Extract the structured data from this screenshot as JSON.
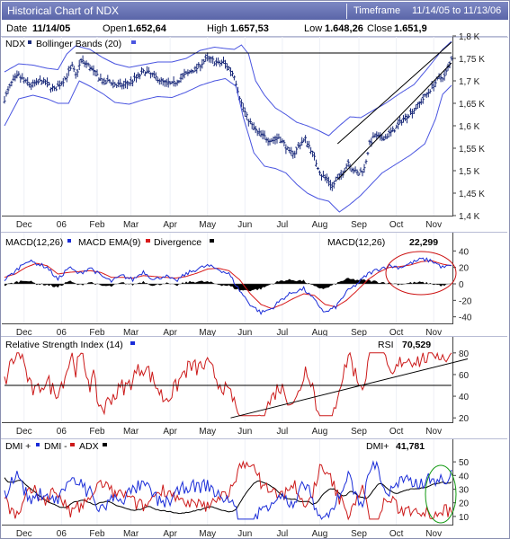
{
  "header": {
    "title": "Historical Chart of NDX",
    "timeframe_label": "Timeframe",
    "timeframe_range": "11/14/05 to 11/13/06"
  },
  "quote": {
    "date_label": "Date",
    "date": "11/14/05",
    "open_label": "Open",
    "open": "1.652,64",
    "high_label": "High",
    "high": "1.657,53",
    "low_label": "Low",
    "low": "1.648,26",
    "close_label": "Close",
    "close": "1.651,9"
  },
  "colors": {
    "price_bars": "#1a2a7a",
    "bands": "#4a55e0",
    "macd": "#1a2cd8",
    "macd_ema": "#d81a1a",
    "divergence": "#000000",
    "rsi": "#cc1a1a",
    "dmi_plus": "#1a2cd8",
    "dmi_minus": "#cc1a1a",
    "adx": "#000000",
    "highlight_red": "#cc1111",
    "highlight_green": "#119911"
  },
  "months": [
    "Dec",
    "06",
    "Feb",
    "Mar",
    "Apr",
    "May",
    "Jun",
    "Jul",
    "Aug",
    "Sep",
    "Oct",
    "Nov"
  ],
  "chart_data": [
    {
      "type": "ohlc",
      "legend": [
        {
          "symbol": "NDX"
        },
        {
          "name": "Bollinger Bands (20)"
        }
      ],
      "yticks": [
        "1,4 K",
        "1,45 K",
        "1,5 K",
        "1,55 K",
        "1,6 K",
        "1,65 K",
        "1,7 K",
        "1,75 K",
        "1,8 K"
      ],
      "ylim": [
        1400,
        1800
      ],
      "close_path": [
        [
          0,
          1660
        ],
        [
          4,
          1695
        ],
        [
          8,
          1712
        ],
        [
          11,
          1700
        ],
        [
          15,
          1690
        ],
        [
          18,
          1695
        ],
        [
          21,
          1700
        ],
        [
          25,
          1690
        ],
        [
          28,
          1680
        ],
        [
          30,
          1688
        ],
        [
          34,
          1705
        ],
        [
          38,
          1732
        ],
        [
          40,
          1712
        ],
        [
          43,
          1745
        ],
        [
          47,
          1735
        ],
        [
          50,
          1720
        ],
        [
          53,
          1708
        ],
        [
          56,
          1695
        ],
        [
          59,
          1700
        ],
        [
          63,
          1690
        ],
        [
          67,
          1690
        ],
        [
          71,
          1698
        ],
        [
          75,
          1710
        ],
        [
          79,
          1722
        ],
        [
          83,
          1712
        ],
        [
          86,
          1705
        ],
        [
          90,
          1695
        ],
        [
          94,
          1692
        ],
        [
          97,
          1700
        ],
        [
          101,
          1712
        ],
        [
          104,
          1720
        ],
        [
          108,
          1728
        ],
        [
          111,
          1740
        ],
        [
          114,
          1750
        ],
        [
          117,
          1745
        ],
        [
          120,
          1738
        ],
        [
          123,
          1742
        ],
        [
          126,
          1728
        ],
        [
          129,
          1712
        ],
        [
          131,
          1680
        ],
        [
          133,
          1650
        ],
        [
          136,
          1620
        ],
        [
          139,
          1600
        ],
        [
          142,
          1585
        ],
        [
          145,
          1578
        ],
        [
          148,
          1570
        ],
        [
          151,
          1568
        ],
        [
          154,
          1575
        ],
        [
          157,
          1560
        ],
        [
          160,
          1540
        ],
        [
          163,
          1540
        ],
        [
          166,
          1560
        ],
        [
          169,
          1570
        ],
        [
          172,
          1548
        ],
        [
          175,
          1518
        ],
        [
          178,
          1490
        ],
        [
          181,
          1482
        ],
        [
          184,
          1465
        ],
        [
          187,
          1482
        ],
        [
          190,
          1495
        ],
        [
          193,
          1520
        ],
        [
          196,
          1500
        ],
        [
          199,
          1493
        ],
        [
          202,
          1505
        ],
        [
          205,
          1560
        ],
        [
          208,
          1578
        ],
        [
          211,
          1572
        ],
        [
          214,
          1575
        ],
        [
          217,
          1585
        ],
        [
          220,
          1596
        ],
        [
          223,
          1612
        ],
        [
          226,
          1622
        ],
        [
          229,
          1632
        ],
        [
          232,
          1645
        ],
        [
          235,
          1660
        ],
        [
          238,
          1675
        ],
        [
          241,
          1692
        ],
        [
          244,
          1705
        ],
        [
          247,
          1710
        ],
        [
          250,
          1738
        ],
        [
          251,
          1752
        ]
      ],
      "upper_band": [
        [
          0,
          1720
        ],
        [
          8,
          1738
        ],
        [
          16,
          1735
        ],
        [
          24,
          1728
        ],
        [
          30,
          1725
        ],
        [
          35,
          1760
        ],
        [
          40,
          1778
        ],
        [
          48,
          1770
        ],
        [
          55,
          1752
        ],
        [
          62,
          1738
        ],
        [
          70,
          1730
        ],
        [
          78,
          1736
        ],
        [
          86,
          1742
        ],
        [
          94,
          1742
        ],
        [
          102,
          1750
        ],
        [
          110,
          1768
        ],
        [
          118,
          1775
        ],
        [
          124,
          1772
        ],
        [
          129,
          1770
        ],
        [
          133,
          1780
        ],
        [
          137,
          1760
        ],
        [
          141,
          1700
        ],
        [
          146,
          1668
        ],
        [
          152,
          1640
        ],
        [
          158,
          1625
        ],
        [
          164,
          1608
        ],
        [
          170,
          1600
        ],
        [
          176,
          1590
        ],
        [
          182,
          1578
        ],
        [
          188,
          1600
        ],
        [
          194,
          1620
        ],
        [
          200,
          1618
        ],
        [
          206,
          1632
        ],
        [
          214,
          1650
        ],
        [
          222,
          1672
        ],
        [
          230,
          1692
        ],
        [
          238,
          1730
        ],
        [
          246,
          1770
        ],
        [
          251,
          1788
        ]
      ],
      "lower_band": [
        [
          0,
          1600
        ],
        [
          8,
          1660
        ],
        [
          16,
          1668
        ],
        [
          24,
          1660
        ],
        [
          30,
          1650
        ],
        [
          36,
          1650
        ],
        [
          42,
          1700
        ],
        [
          48,
          1688
        ],
        [
          55,
          1672
        ],
        [
          62,
          1652
        ],
        [
          70,
          1648
        ],
        [
          78,
          1658
        ],
        [
          86,
          1665
        ],
        [
          94,
          1663
        ],
        [
          102,
          1675
        ],
        [
          110,
          1690
        ],
        [
          118,
          1700
        ],
        [
          124,
          1705
        ],
        [
          130,
          1688
        ],
        [
          134,
          1620
        ],
        [
          140,
          1540
        ],
        [
          146,
          1510
        ],
        [
          152,
          1505
        ],
        [
          158,
          1495
        ],
        [
          164,
          1470
        ],
        [
          170,
          1450
        ],
        [
          176,
          1438
        ],
        [
          182,
          1432
        ],
        [
          188,
          1408
        ],
        [
          194,
          1425
        ],
        [
          200,
          1445
        ],
        [
          206,
          1470
        ],
        [
          212,
          1495
        ],
        [
          220,
          1515
        ],
        [
          228,
          1535
        ],
        [
          236,
          1560
        ],
        [
          242,
          1615
        ],
        [
          246,
          1670
        ],
        [
          251,
          1690
        ]
      ],
      "resistance": {
        "level": 1762,
        "from": 40,
        "to": 251
      },
      "channel_upper": [
        [
          187,
          1560
        ],
        [
          251,
          1786
        ]
      ],
      "channel_lower": [
        [
          187,
          1480
        ],
        [
          251,
          1740
        ]
      ]
    },
    {
      "type": "line",
      "legend": [
        {
          "name": "MACD(12,26)"
        },
        {
          "name": "MACD EMA(9)"
        },
        {
          "name": "Divergence"
        }
      ],
      "readout_label": "MACD(12,26)",
      "readout_value": "22,299",
      "yticks": [
        "-40",
        "-20",
        "0",
        "20",
        "40"
      ],
      "ylim": [
        -48,
        48
      ],
      "macd": [
        [
          0,
          5
        ],
        [
          6,
          15
        ],
        [
          12,
          28
        ],
        [
          18,
          25
        ],
        [
          24,
          20
        ],
        [
          30,
          5
        ],
        [
          36,
          20
        ],
        [
          42,
          12
        ],
        [
          48,
          20
        ],
        [
          54,
          10
        ],
        [
          60,
          3
        ],
        [
          66,
          10
        ],
        [
          72,
          5
        ],
        [
          78,
          15
        ],
        [
          84,
          5
        ],
        [
          90,
          10
        ],
        [
          96,
          3
        ],
        [
          102,
          12
        ],
        [
          108,
          18
        ],
        [
          114,
          22
        ],
        [
          120,
          18
        ],
        [
          126,
          12
        ],
        [
          132,
          -8
        ],
        [
          138,
          -25
        ],
        [
          144,
          -35
        ],
        [
          150,
          -30
        ],
        [
          156,
          -18
        ],
        [
          162,
          -10
        ],
        [
          168,
          -6
        ],
        [
          174,
          -20
        ],
        [
          180,
          -35
        ],
        [
          186,
          -28
        ],
        [
          192,
          -10
        ],
        [
          198,
          0
        ],
        [
          204,
          12
        ],
        [
          210,
          18
        ],
        [
          216,
          22
        ],
        [
          222,
          20
        ],
        [
          228,
          25
        ],
        [
          234,
          30
        ],
        [
          240,
          28
        ],
        [
          246,
          20
        ],
        [
          251,
          22
        ]
      ],
      "ema": [
        [
          0,
          8
        ],
        [
          6,
          12
        ],
        [
          12,
          20
        ],
        [
          18,
          25
        ],
        [
          24,
          22
        ],
        [
          30,
          12
        ],
        [
          36,
          14
        ],
        [
          42,
          15
        ],
        [
          48,
          16
        ],
        [
          54,
          14
        ],
        [
          60,
          8
        ],
        [
          66,
          8
        ],
        [
          72,
          7
        ],
        [
          78,
          10
        ],
        [
          84,
          9
        ],
        [
          90,
          8
        ],
        [
          96,
          7
        ],
        [
          102,
          9
        ],
        [
          108,
          13
        ],
        [
          114,
          18
        ],
        [
          120,
          19
        ],
        [
          126,
          16
        ],
        [
          132,
          5
        ],
        [
          138,
          -12
        ],
        [
          144,
          -25
        ],
        [
          150,
          -30
        ],
        [
          156,
          -25
        ],
        [
          162,
          -18
        ],
        [
          168,
          -12
        ],
        [
          174,
          -14
        ],
        [
          180,
          -25
        ],
        [
          186,
          -28
        ],
        [
          192,
          -20
        ],
        [
          198,
          -8
        ],
        [
          204,
          5
        ],
        [
          210,
          14
        ],
        [
          216,
          20
        ],
        [
          222,
          21
        ],
        [
          228,
          23
        ],
        [
          234,
          27
        ],
        [
          240,
          28
        ],
        [
          246,
          24
        ],
        [
          251,
          22
        ]
      ]
    },
    {
      "type": "line",
      "legend": [
        {
          "name": "Relative Strength Index (14)"
        }
      ],
      "readout_label": "RSI",
      "readout_value": "70,529",
      "yticks": [
        "20",
        "40",
        "60",
        "80"
      ],
      "ylim": [
        16,
        84
      ],
      "level": 50,
      "trend": [
        [
          127,
          20
        ],
        [
          251,
          72
        ]
      ]
    },
    {
      "type": "line",
      "legend": [
        {
          "name": "DMI +"
        },
        {
          "name": "DMI -"
        },
        {
          "name": "ADX"
        }
      ],
      "readout_label": "DMI+",
      "readout_value": "41,781",
      "yticks": [
        "10",
        "20",
        "30",
        "40",
        "50"
      ],
      "ylim": [
        4,
        56
      ]
    }
  ]
}
